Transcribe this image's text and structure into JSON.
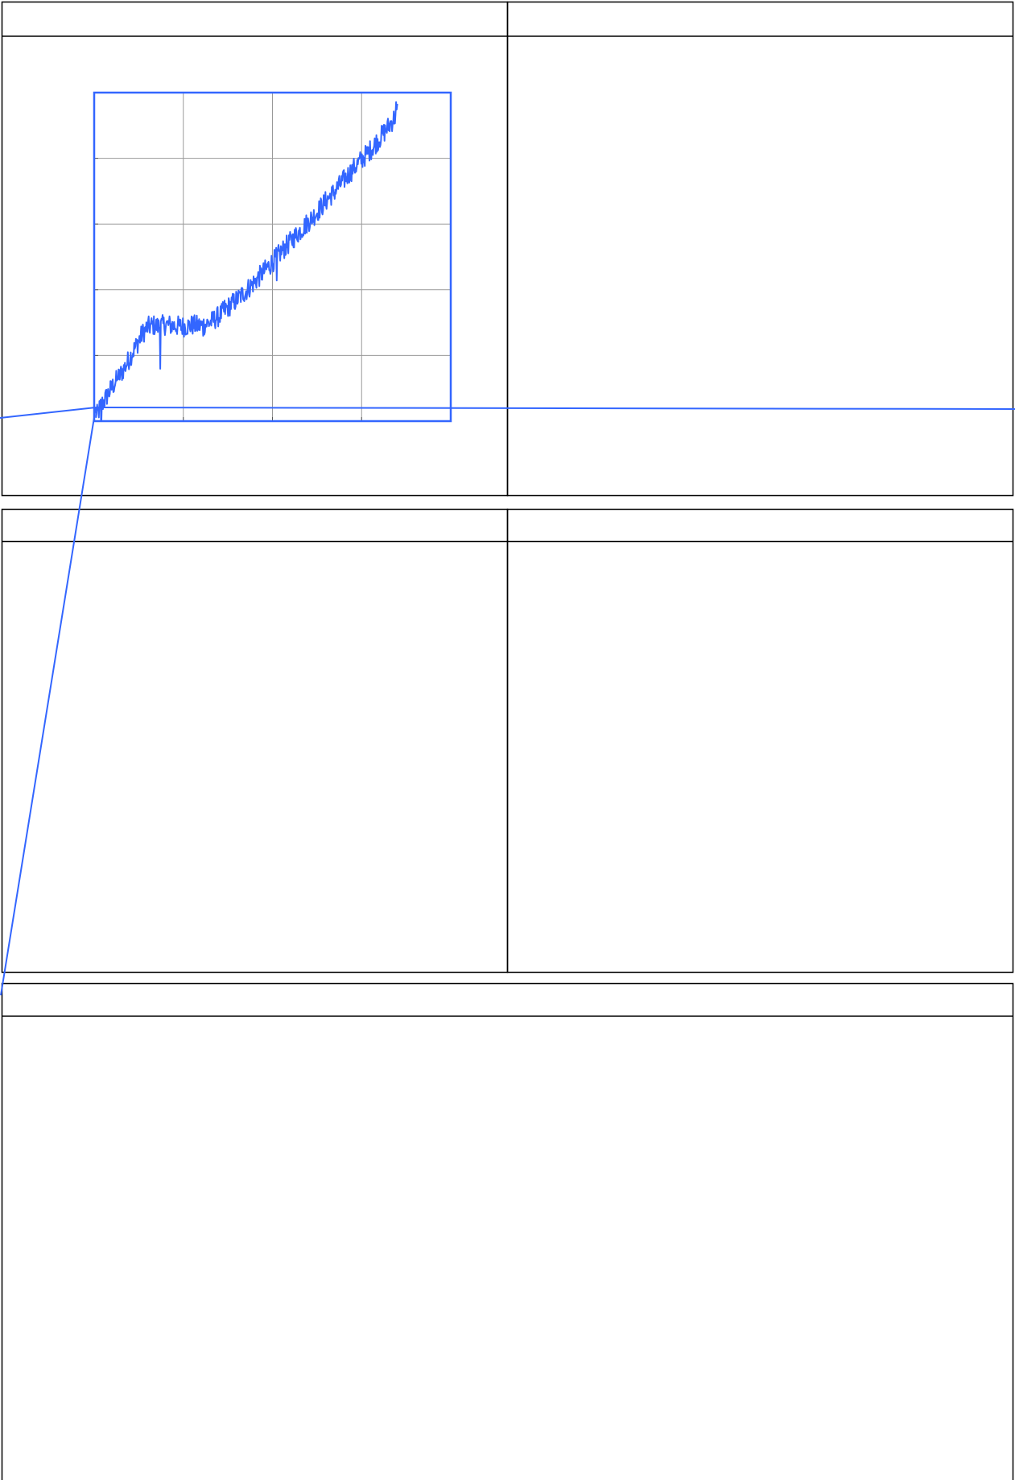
{
  "chart_data": {
    "type": "line",
    "title": "",
    "xlabel": "",
    "ylabel": "",
    "xlim": [
      0,
      4
    ],
    "ylim": [
      0,
      5
    ],
    "grid": true,
    "legend": "none",
    "series": [
      {
        "color": "#3366ff",
        "points": [
          [
            0.02,
            0.05
          ],
          [
            0.07,
            0.22
          ],
          [
            0.12,
            0.33
          ],
          [
            0.18,
            0.47
          ],
          [
            0.24,
            0.6
          ],
          [
            0.3,
            0.72
          ],
          [
            0.36,
            0.86
          ],
          [
            0.42,
            1.02
          ],
          [
            0.48,
            1.17
          ],
          [
            0.54,
            1.33
          ],
          [
            0.6,
            1.43
          ],
          [
            0.66,
            1.46
          ],
          [
            0.72,
            1.44
          ],
          [
            0.8,
            1.47
          ],
          [
            0.9,
            1.45
          ],
          [
            1.0,
            1.44
          ],
          [
            1.1,
            1.46
          ],
          [
            1.2,
            1.45
          ],
          [
            1.3,
            1.5
          ],
          [
            1.4,
            1.6
          ],
          [
            1.5,
            1.73
          ],
          [
            1.6,
            1.85
          ],
          [
            1.7,
            1.98
          ],
          [
            1.8,
            2.12
          ],
          [
            1.9,
            2.27
          ],
          [
            2.0,
            2.42
          ],
          [
            2.1,
            2.58
          ],
          [
            2.2,
            2.73
          ],
          [
            2.3,
            2.88
          ],
          [
            2.4,
            3.03
          ],
          [
            2.5,
            3.18
          ],
          [
            2.6,
            3.35
          ],
          [
            2.7,
            3.5
          ],
          [
            2.8,
            3.67
          ],
          [
            2.9,
            3.83
          ],
          [
            3.0,
            3.98
          ],
          [
            3.1,
            4.13
          ],
          [
            3.2,
            4.3
          ],
          [
            3.3,
            4.48
          ],
          [
            3.37,
            4.62
          ],
          [
            3.4,
            4.72
          ]
        ]
      }
    ]
  },
  "colors": {
    "line": "#3366ff",
    "grid": "#999999",
    "frame": "#3366ff",
    "panel_border": "#000000"
  },
  "panels": [
    {
      "title": ""
    },
    {
      "title": ""
    },
    {
      "title": ""
    },
    {
      "title": ""
    },
    {
      "title": ""
    }
  ]
}
